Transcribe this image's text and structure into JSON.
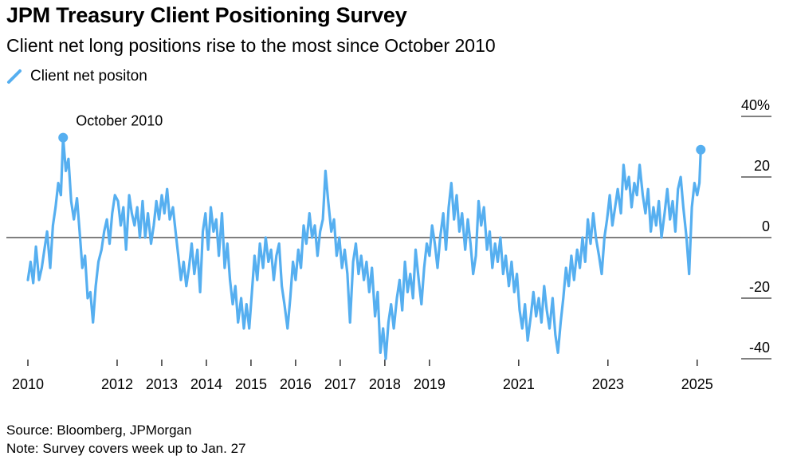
{
  "header": {
    "title": "JPM Treasury Client Positioning Survey",
    "subtitle": "Client net long positions rise to the most since October 2010"
  },
  "legend": {
    "label": "Client net positon"
  },
  "footer": {
    "source": "Source: Bloomberg, JPMorgan",
    "note": "Note: Survey covers week up to Jan. 27"
  },
  "colors": {
    "line": "#56aff0",
    "axis": "#000000",
    "text": "#000000"
  },
  "chart_data": {
    "type": "line",
    "title": "JPM Treasury Client Positioning Survey",
    "subtitle": "Client net long positions rise to the most since October 2010",
    "xlabel": "",
    "ylabel": "",
    "series": [
      {
        "name": "Client net positon",
        "points": [
          [
            2010.0,
            -14
          ],
          [
            2010.06,
            -8
          ],
          [
            2010.12,
            -15
          ],
          [
            2010.18,
            -3
          ],
          [
            2010.25,
            -14
          ],
          [
            2010.31,
            -10
          ],
          [
            2010.37,
            -4
          ],
          [
            2010.43,
            2
          ],
          [
            2010.5,
            -10
          ],
          [
            2010.56,
            4
          ],
          [
            2010.62,
            10
          ],
          [
            2010.68,
            18
          ],
          [
            2010.74,
            14
          ],
          [
            2010.79,
            33
          ],
          [
            2010.85,
            22
          ],
          [
            2010.91,
            26
          ],
          [
            2010.97,
            12
          ],
          [
            2011.03,
            6
          ],
          [
            2011.1,
            13
          ],
          [
            2011.16,
            2
          ],
          [
            2011.22,
            -10
          ],
          [
            2011.28,
            -6
          ],
          [
            2011.34,
            -20
          ],
          [
            2011.4,
            -18
          ],
          [
            2011.46,
            -28
          ],
          [
            2011.52,
            -16
          ],
          [
            2011.58,
            -8
          ],
          [
            2011.65,
            -4
          ],
          [
            2011.71,
            2
          ],
          [
            2011.77,
            6
          ],
          [
            2011.83,
            -2
          ],
          [
            2011.89,
            8
          ],
          [
            2011.95,
            14
          ],
          [
            2012.02,
            12
          ],
          [
            2012.08,
            4
          ],
          [
            2012.14,
            10
          ],
          [
            2012.2,
            -4
          ],
          [
            2012.27,
            14
          ],
          [
            2012.33,
            8
          ],
          [
            2012.39,
            4
          ],
          [
            2012.45,
            10
          ],
          [
            2012.51,
            0
          ],
          [
            2012.57,
            12
          ],
          [
            2012.63,
            0
          ],
          [
            2012.69,
            8
          ],
          [
            2012.76,
            -2
          ],
          [
            2012.82,
            4
          ],
          [
            2012.88,
            12
          ],
          [
            2012.94,
            6
          ],
          [
            2013.0,
            14
          ],
          [
            2013.06,
            8
          ],
          [
            2013.12,
            16
          ],
          [
            2013.18,
            6
          ],
          [
            2013.25,
            10
          ],
          [
            2013.31,
            2
          ],
          [
            2013.37,
            -6
          ],
          [
            2013.43,
            -14
          ],
          [
            2013.49,
            -8
          ],
          [
            2013.55,
            -16
          ],
          [
            2013.61,
            -10
          ],
          [
            2013.67,
            -2
          ],
          [
            2013.73,
            -12
          ],
          [
            2013.8,
            -4
          ],
          [
            2013.86,
            -18
          ],
          [
            2013.92,
            2
          ],
          [
            2013.98,
            8
          ],
          [
            2014.04,
            -4
          ],
          [
            2014.1,
            10
          ],
          [
            2014.16,
            2
          ],
          [
            2014.22,
            6
          ],
          [
            2014.28,
            -6
          ],
          [
            2014.35,
            8
          ],
          [
            2014.41,
            -10
          ],
          [
            2014.47,
            -2
          ],
          [
            2014.53,
            -14
          ],
          [
            2014.59,
            -22
          ],
          [
            2014.65,
            -16
          ],
          [
            2014.71,
            -28
          ],
          [
            2014.78,
            -20
          ],
          [
            2014.84,
            -30
          ],
          [
            2014.9,
            -22
          ],
          [
            2014.96,
            -30
          ],
          [
            2015.02,
            -18
          ],
          [
            2015.08,
            -6
          ],
          [
            2015.14,
            -14
          ],
          [
            2015.2,
            -2
          ],
          [
            2015.27,
            -10
          ],
          [
            2015.33,
            0
          ],
          [
            2015.39,
            -8
          ],
          [
            2015.45,
            -4
          ],
          [
            2015.51,
            -14
          ],
          [
            2015.57,
            -6
          ],
          [
            2015.63,
            -2
          ],
          [
            2015.69,
            -16
          ],
          [
            2015.75,
            -22
          ],
          [
            2015.82,
            -30
          ],
          [
            2015.88,
            -20
          ],
          [
            2015.94,
            -8
          ],
          [
            2016.0,
            -14
          ],
          [
            2016.06,
            -4
          ],
          [
            2016.12,
            -10
          ],
          [
            2016.18,
            4
          ],
          [
            2016.24,
            -2
          ],
          [
            2016.31,
            8
          ],
          [
            2016.37,
            0
          ],
          [
            2016.43,
            4
          ],
          [
            2016.49,
            -6
          ],
          [
            2016.55,
            2
          ],
          [
            2016.61,
            6
          ],
          [
            2016.67,
            22
          ],
          [
            2016.73,
            12
          ],
          [
            2016.8,
            2
          ],
          [
            2016.86,
            6
          ],
          [
            2016.92,
            -6
          ],
          [
            2016.98,
            0
          ],
          [
            2017.04,
            -10
          ],
          [
            2017.1,
            -4
          ],
          [
            2017.16,
            -12
          ],
          [
            2017.22,
            -28
          ],
          [
            2017.29,
            -8
          ],
          [
            2017.35,
            -2
          ],
          [
            2017.41,
            -12
          ],
          [
            2017.47,
            -6
          ],
          [
            2017.53,
            -14
          ],
          [
            2017.59,
            -8
          ],
          [
            2017.65,
            -18
          ],
          [
            2017.71,
            -10
          ],
          [
            2017.78,
            -26
          ],
          [
            2017.84,
            -18
          ],
          [
            2017.9,
            -38
          ],
          [
            2017.96,
            -30
          ],
          [
            2018.02,
            -40
          ],
          [
            2018.08,
            -28
          ],
          [
            2018.14,
            -22
          ],
          [
            2018.2,
            -30
          ],
          [
            2018.27,
            -20
          ],
          [
            2018.33,
            -14
          ],
          [
            2018.39,
            -24
          ],
          [
            2018.45,
            -8
          ],
          [
            2018.51,
            -18
          ],
          [
            2018.57,
            -12
          ],
          [
            2018.63,
            -20
          ],
          [
            2018.69,
            -4
          ],
          [
            2018.76,
            -14
          ],
          [
            2018.82,
            -22
          ],
          [
            2018.88,
            -10
          ],
          [
            2018.94,
            -2
          ],
          [
            2019.0,
            -6
          ],
          [
            2019.06,
            4
          ],
          [
            2019.12,
            -2
          ],
          [
            2019.18,
            -10
          ],
          [
            2019.24,
            0
          ],
          [
            2019.31,
            8
          ],
          [
            2019.37,
            -4
          ],
          [
            2019.43,
            10
          ],
          [
            2019.49,
            18
          ],
          [
            2019.55,
            6
          ],
          [
            2019.61,
            14
          ],
          [
            2019.67,
            2
          ],
          [
            2019.73,
            8
          ],
          [
            2019.8,
            -4
          ],
          [
            2019.86,
            6
          ],
          [
            2019.92,
            -2
          ],
          [
            2019.98,
            -12
          ],
          [
            2020.04,
            -6
          ],
          [
            2020.1,
            12
          ],
          [
            2020.16,
            4
          ],
          [
            2020.22,
            10
          ],
          [
            2020.29,
            -4
          ],
          [
            2020.35,
            2
          ],
          [
            2020.41,
            -10
          ],
          [
            2020.47,
            -2
          ],
          [
            2020.53,
            -8
          ],
          [
            2020.59,
            0
          ],
          [
            2020.65,
            -12
          ],
          [
            2020.71,
            -6
          ],
          [
            2020.78,
            -16
          ],
          [
            2020.84,
            -8
          ],
          [
            2020.9,
            -18
          ],
          [
            2020.96,
            -12
          ],
          [
            2021.02,
            -24
          ],
          [
            2021.08,
            -30
          ],
          [
            2021.14,
            -22
          ],
          [
            2021.2,
            -34
          ],
          [
            2021.27,
            -26
          ],
          [
            2021.33,
            -18
          ],
          [
            2021.39,
            -26
          ],
          [
            2021.45,
            -20
          ],
          [
            2021.51,
            -28
          ],
          [
            2021.57,
            -16
          ],
          [
            2021.63,
            -24
          ],
          [
            2021.69,
            -30
          ],
          [
            2021.76,
            -20
          ],
          [
            2021.82,
            -32
          ],
          [
            2021.88,
            -38
          ],
          [
            2021.94,
            -28
          ],
          [
            2022.0,
            -20
          ],
          [
            2022.06,
            -10
          ],
          [
            2022.12,
            -16
          ],
          [
            2022.18,
            -6
          ],
          [
            2022.24,
            -14
          ],
          [
            2022.31,
            -4
          ],
          [
            2022.37,
            -10
          ],
          [
            2022.43,
            0
          ],
          [
            2022.49,
            -8
          ],
          [
            2022.55,
            6
          ],
          [
            2022.61,
            -2
          ],
          [
            2022.67,
            8
          ],
          [
            2022.73,
            0
          ],
          [
            2022.8,
            -6
          ],
          [
            2022.86,
            -12
          ],
          [
            2022.92,
            0
          ],
          [
            2022.98,
            6
          ],
          [
            2023.04,
            14
          ],
          [
            2023.1,
            4
          ],
          [
            2023.16,
            10
          ],
          [
            2023.22,
            16
          ],
          [
            2023.29,
            8
          ],
          [
            2023.35,
            24
          ],
          [
            2023.41,
            16
          ],
          [
            2023.47,
            20
          ],
          [
            2023.53,
            10
          ],
          [
            2023.59,
            18
          ],
          [
            2023.65,
            14
          ],
          [
            2023.71,
            24
          ],
          [
            2023.78,
            14
          ],
          [
            2023.84,
            8
          ],
          [
            2023.9,
            16
          ],
          [
            2023.96,
            2
          ],
          [
            2024.02,
            10
          ],
          [
            2024.08,
            4
          ],
          [
            2024.14,
            12
          ],
          [
            2024.2,
            0
          ],
          [
            2024.27,
            8
          ],
          [
            2024.33,
            16
          ],
          [
            2024.39,
            6
          ],
          [
            2024.45,
            12
          ],
          [
            2024.51,
            2
          ],
          [
            2024.57,
            16
          ],
          [
            2024.63,
            20
          ],
          [
            2024.69,
            10
          ],
          [
            2024.76,
            0
          ],
          [
            2024.82,
            -12
          ],
          [
            2024.88,
            10
          ],
          [
            2024.94,
            18
          ],
          [
            2025.0,
            14
          ],
          [
            2025.05,
            18
          ],
          [
            2025.08,
            29
          ]
        ]
      }
    ],
    "x_ticks": [
      2010,
      2012,
      2013,
      2014,
      2015,
      2016,
      2017,
      2018,
      2019,
      2021,
      2023,
      2025
    ],
    "y_ticks": [
      {
        "value": 40,
        "label": "40%"
      },
      {
        "value": 20,
        "label": "20"
      },
      {
        "value": 0,
        "label": "0"
      },
      {
        "value": -20,
        "label": "-20"
      },
      {
        "value": -40,
        "label": "-40"
      }
    ],
    "xlim": [
      2010,
      2025.2
    ],
    "ylim": [
      -40,
      40
    ],
    "zero_line": true,
    "legend_position": "top-left",
    "annotations": [
      {
        "text": "October 2010",
        "x": 2010.79,
        "y": 33,
        "marker": true
      },
      {
        "text": "",
        "x": 2025.08,
        "y": 29,
        "marker": true
      }
    ]
  }
}
